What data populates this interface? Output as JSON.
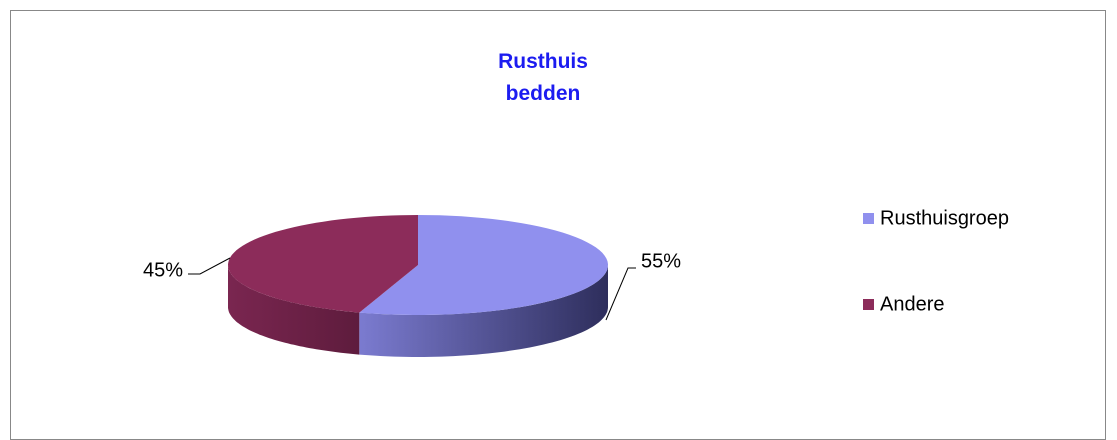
{
  "chart_data": {
    "type": "pie3d",
    "title": "Rusthuis bedden",
    "categories": [
      "Rusthuisgroep",
      "Andere"
    ],
    "values": [
      55,
      45
    ],
    "value_labels": [
      "55%",
      "45%"
    ],
    "colors": [
      "#9090ee",
      "#8c2c5a"
    ],
    "legend": "right"
  }
}
